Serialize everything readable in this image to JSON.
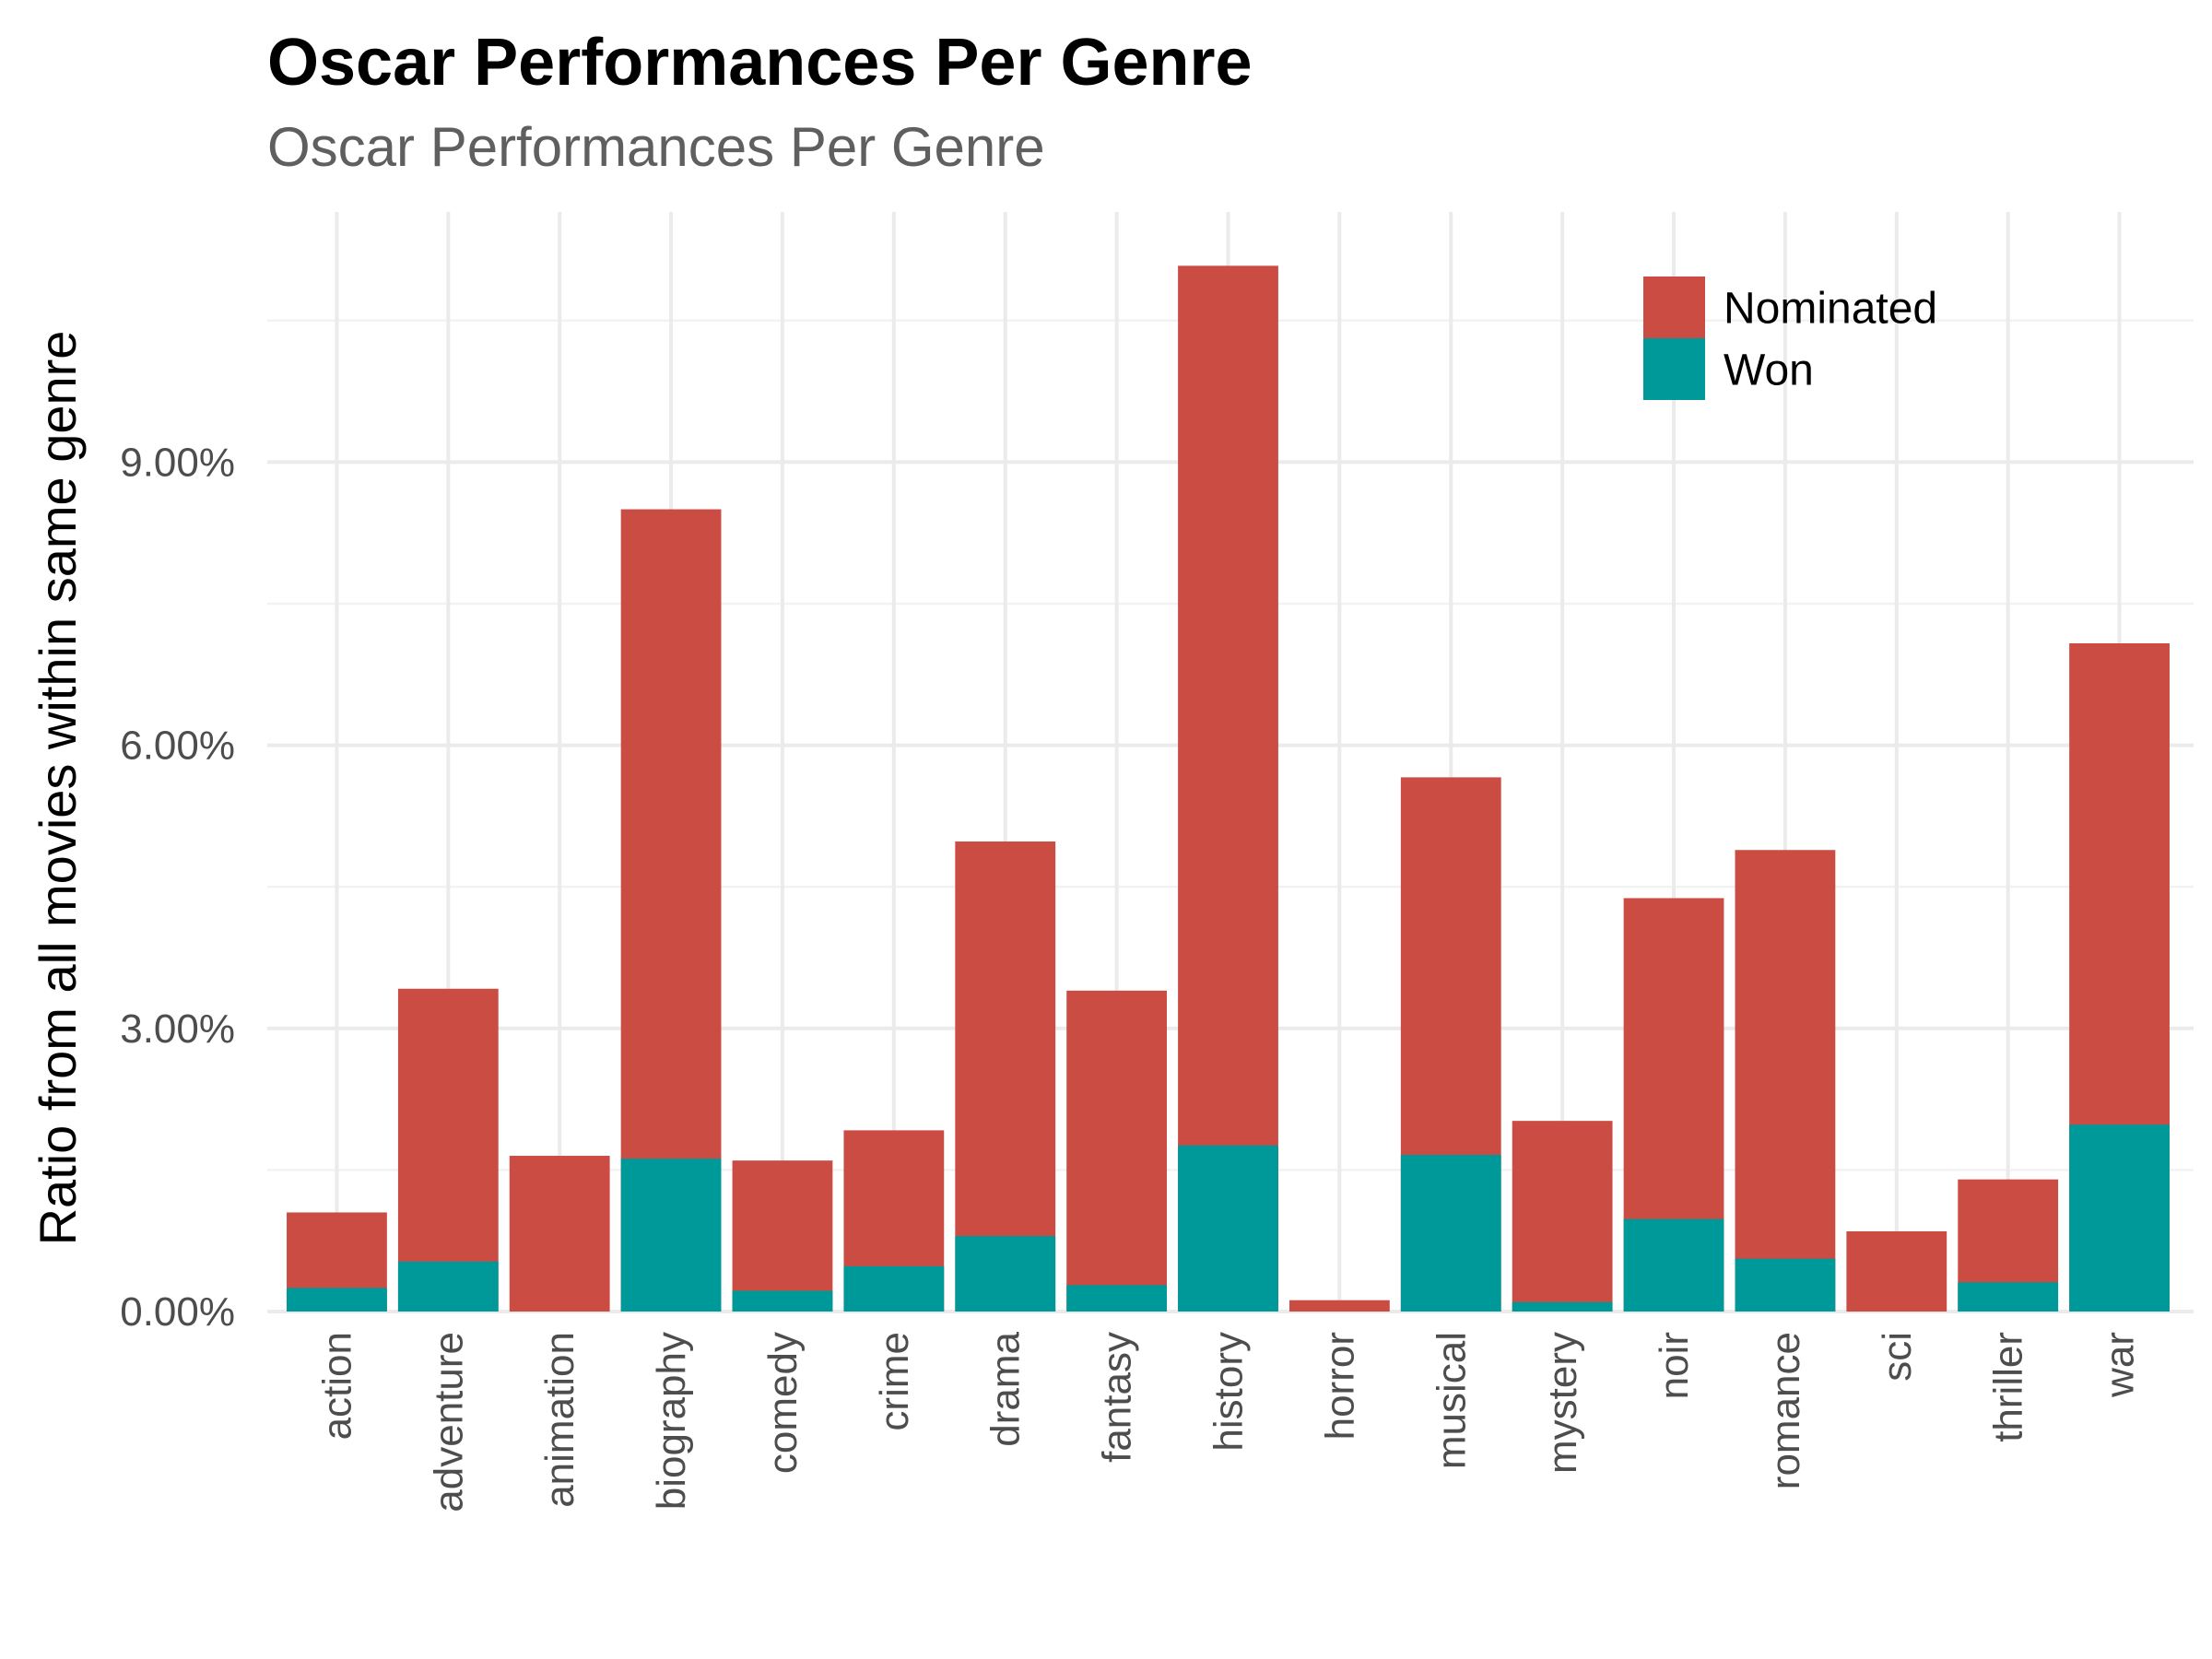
{
  "chart_data": {
    "type": "bar",
    "stacked": true,
    "title": "Oscar Performances Per Genre",
    "subtitle": "Oscar Performances Per Genre",
    "xlabel": "",
    "ylabel": "Ratio from all movies within same genre",
    "categories": [
      "action",
      "adventure",
      "animation",
      "biography",
      "comedy",
      "crime",
      "drama",
      "fantasy",
      "history",
      "horror",
      "musical",
      "mystery",
      "noir",
      "romance",
      "sci",
      "thriller",
      "war"
    ],
    "series": [
      {
        "name": "Nominated",
        "color": "#CB4C43",
        "values": [
          1.05,
          3.42,
          1.65,
          8.5,
          1.6,
          1.92,
          4.98,
          3.4,
          11.08,
          0.12,
          5.66,
          2.02,
          4.38,
          4.89,
          0.85,
          1.4,
          7.08
        ]
      },
      {
        "name": "Won",
        "color": "#00999A",
        "values": [
          0.25,
          0.53,
          0.0,
          1.62,
          0.22,
          0.48,
          0.8,
          0.28,
          1.76,
          0.0,
          1.66,
          0.1,
          0.98,
          0.56,
          0.0,
          0.31,
          1.98
        ]
      }
    ],
    "yticks": [
      0,
      3,
      6,
      9
    ],
    "ytick_labels": [
      "0.00%",
      "3.00%",
      "6.00%",
      "9.00%"
    ],
    "ylim": [
      0,
      11.65
    ],
    "grid": true,
    "legend_position": "top-right"
  }
}
